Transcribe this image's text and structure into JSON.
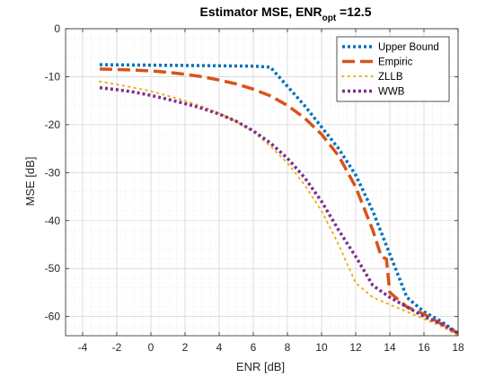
{
  "chart_data": {
    "type": "line",
    "title_main": "Estimator MSE, ENR",
    "title_sub": "opt",
    "title_tail": " =12.5",
    "xlabel": "ENR [dB]",
    "ylabel": "MSE [dB]",
    "xlim": [
      -5,
      18
    ],
    "ylim": [
      -64,
      0
    ],
    "xticks": [
      -4,
      -2,
      0,
      2,
      4,
      6,
      8,
      10,
      12,
      14,
      16,
      18
    ],
    "yticks": [
      0,
      -10,
      -20,
      -30,
      -40,
      -50,
      -60
    ],
    "grid": true,
    "minor_grid": true,
    "legend_position": "top-right",
    "series": [
      {
        "name": "Upper Bound",
        "color": "#0072BD",
        "style": "dotted",
        "x": [
          -3,
          0,
          3,
          6,
          7,
          8,
          9,
          10,
          11,
          12,
          13,
          14,
          15,
          16,
          17,
          18
        ],
        "y": [
          -7.5,
          -7.6,
          -7.7,
          -7.8,
          -8,
          -12,
          -16,
          -20.5,
          -25,
          -30.5,
          -38,
          -47,
          -56,
          -59,
          -61,
          -63.5
        ]
      },
      {
        "name": "Empiric",
        "color": "#D95319",
        "style": "dashed",
        "x": [
          -3,
          -1,
          0,
          1,
          2,
          3,
          4,
          5,
          6,
          7,
          8,
          9,
          10,
          11,
          12,
          12.5,
          13,
          13.5,
          13.8,
          14,
          15,
          16,
          17,
          18
        ],
        "y": [
          -8.4,
          -8.6,
          -8.8,
          -9.1,
          -9.5,
          -10,
          -10.7,
          -11.5,
          -12.6,
          -14,
          -16,
          -18.6,
          -22,
          -26.5,
          -33,
          -37.5,
          -42,
          -47.5,
          -48,
          -55,
          -58,
          -59.5,
          -61.5,
          -63.5
        ]
      },
      {
        "name": "ZLLB",
        "color": "#EDB120",
        "style": "dots",
        "x": [
          -3,
          -2,
          -1,
          0,
          1,
          2,
          3,
          4,
          5,
          6,
          7,
          8,
          9,
          10,
          11,
          12,
          13,
          14,
          15,
          16,
          17,
          18
        ],
        "y": [
          -11,
          -11.6,
          -12.3,
          -13,
          -14,
          -15,
          -16.2,
          -17.6,
          -19.3,
          -21.5,
          -24.5,
          -28,
          -32.5,
          -38,
          -45,
          -53,
          -56,
          -57.5,
          -59,
          -60.5,
          -62,
          -64
        ]
      },
      {
        "name": "WWB",
        "color": "#7E2F8E",
        "style": "dotted",
        "x": [
          -3,
          -2,
          -1,
          0,
          1,
          2,
          3,
          4,
          5,
          6,
          7,
          8,
          9,
          10,
          11,
          12,
          13,
          14,
          15,
          16,
          17,
          18
        ],
        "y": [
          -12.3,
          -12.7,
          -13.2,
          -13.9,
          -14.7,
          -15.6,
          -16.6,
          -17.8,
          -19.3,
          -21.3,
          -23.8,
          -27,
          -31,
          -36,
          -42,
          -47.5,
          -53.5,
          -56,
          -58,
          -60,
          -61.5,
          -63.5
        ]
      }
    ]
  }
}
